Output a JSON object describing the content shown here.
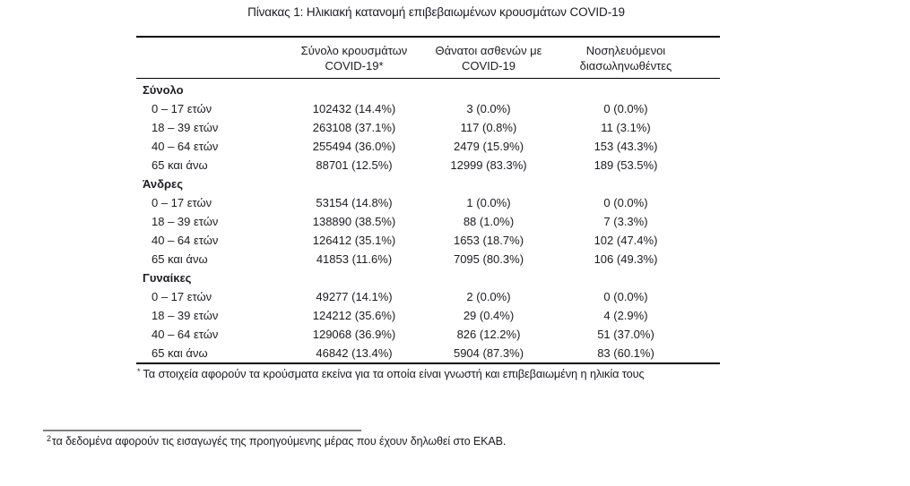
{
  "title": "Πίνακας 1: Ηλικιακή κατανομή επιβεβαιωμένων κρουσμάτων COVID-19",
  "table": {
    "header": {
      "col_cases": {
        "line1": "Σύνολο κρουσμάτων",
        "line2": "COVID-19*"
      },
      "col_deaths": {
        "line1": "Θάνατοι ασθενών με",
        "line2": "COVID-19"
      },
      "col_intubated": {
        "line1": "Νοσηλευόμενοι",
        "line2": "διασωληνωθέντες"
      }
    },
    "sections": [
      {
        "label": "Σύνολο",
        "rows": [
          {
            "age": "0 – 17 ετών",
            "cases": "102432 (14.4%)",
            "deaths": "3 (0.0%)",
            "intubated": "0 (0.0%)"
          },
          {
            "age": "18 – 39 ετών",
            "cases": "263108 (37.1%)",
            "deaths": "117 (0.8%)",
            "intubated": "11 (3.1%)"
          },
          {
            "age": "40 – 64 ετών",
            "cases": "255494 (36.0%)",
            "deaths": "2479 (15.9%)",
            "intubated": "153 (43.3%)"
          },
          {
            "age": "65 και άνω",
            "cases": "88701 (12.5%)",
            "deaths": "12999 (83.3%)",
            "intubated": "189 (53.5%)"
          }
        ]
      },
      {
        "label": "Άνδρες",
        "rows": [
          {
            "age": "0 – 17 ετών",
            "cases": "53154 (14.8%)",
            "deaths": "1 (0.0%)",
            "intubated": "0 (0.0%)"
          },
          {
            "age": "18 – 39 ετών",
            "cases": "138890 (38.5%)",
            "deaths": "88 (1.0%)",
            "intubated": "7 (3.3%)"
          },
          {
            "age": "40 – 64 ετών",
            "cases": "126412 (35.1%)",
            "deaths": "1653 (18.7%)",
            "intubated": "102 (47.4%)"
          },
          {
            "age": "65 και άνω",
            "cases": "41853 (11.6%)",
            "deaths": "7095 (80.3%)",
            "intubated": "106 (49.3%)"
          }
        ]
      },
      {
        "label": "Γυναίκες",
        "rows": [
          {
            "age": "0 – 17 ετών",
            "cases": "49277 (14.1%)",
            "deaths": "2 (0.0%)",
            "intubated": "0 (0.0%)"
          },
          {
            "age": "18 – 39 ετών",
            "cases": "124212 (35.6%)",
            "deaths": "29 (0.4%)",
            "intubated": "4 (2.9%)"
          },
          {
            "age": "40 – 64 ετών",
            "cases": "129068 (36.9%)",
            "deaths": "826 (12.2%)",
            "intubated": "51 (37.0%)"
          },
          {
            "age": "65 και άνω",
            "cases": "46842 (13.4%)",
            "deaths": "5904 (87.3%)",
            "intubated": "83 (60.1%)"
          }
        ]
      }
    ],
    "footnote": {
      "marker": "*",
      "text": "Τα στοιχεία αφορούν τα κρούσματα εκείνα για τα οποία είναι γνωστή και επιβεβαιωμένη η ηλικία τους"
    }
  },
  "page_footnote": {
    "marker": "2",
    "text": "τα δεδομένα αφορούν τις εισαγωγές της προηγούμενης μέρας που έχουν δηλωθεί στο ΕΚΑΒ."
  },
  "colors": {
    "text": "#1c1c22",
    "table_border": "#000000",
    "footnote_separator": "#7f7f7f",
    "background": "#ffffff"
  }
}
